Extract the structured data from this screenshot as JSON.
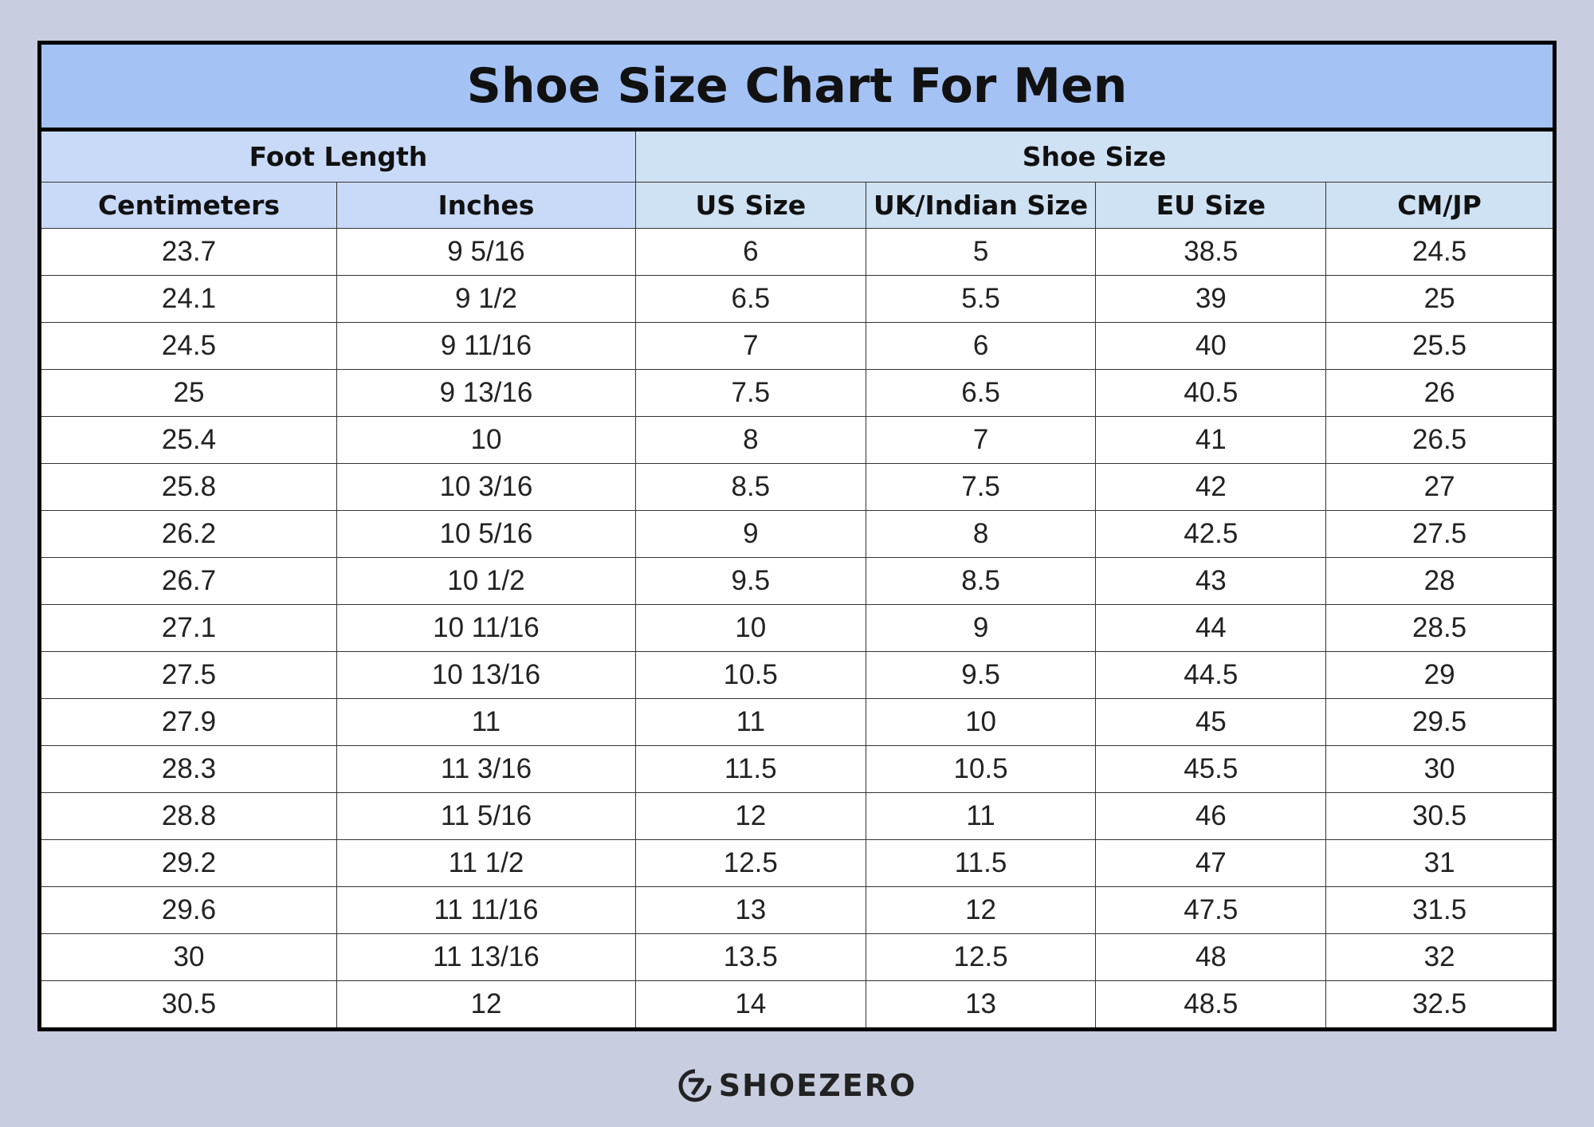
{
  "header": {
    "title": "Shoe Size Chart For Men"
  },
  "table": {
    "groups": [
      "Foot Length",
      "Shoe Size"
    ],
    "columns": [
      "Centimeters",
      "Inches",
      "US Size",
      "UK/Indian Size",
      "EU Size",
      "CM/JP"
    ],
    "rows": [
      [
        "23.7",
        "9 5/16",
        "6",
        "5",
        "38.5",
        "24.5"
      ],
      [
        "24.1",
        "9 1/2",
        "6.5",
        "5.5",
        "39",
        "25"
      ],
      [
        "24.5",
        "9 11/16",
        "7",
        "6",
        "40",
        "25.5"
      ],
      [
        "25",
        "9 13/16",
        "7.5",
        "6.5",
        "40.5",
        "26"
      ],
      [
        "25.4",
        "10",
        "8",
        "7",
        "41",
        "26.5"
      ],
      [
        "25.8",
        "10 3/16",
        "8.5",
        "7.5",
        "42",
        "27"
      ],
      [
        "26.2",
        "10 5/16",
        "9",
        "8",
        "42.5",
        "27.5"
      ],
      [
        "26.7",
        "10 1/2",
        "9.5",
        "8.5",
        "43",
        "28"
      ],
      [
        "27.1",
        "10 11/16",
        "10",
        "9",
        "44",
        "28.5"
      ],
      [
        "27.5",
        "10 13/16",
        "10.5",
        "9.5",
        "44.5",
        "29"
      ],
      [
        "27.9",
        "11",
        "11",
        "10",
        "45",
        "29.5"
      ],
      [
        "28.3",
        "11 3/16",
        "11.5",
        "10.5",
        "45.5",
        "30"
      ],
      [
        "28.8",
        "11 5/16",
        "12",
        "11",
        "46",
        "30.5"
      ],
      [
        "29.2",
        "11 1/2",
        "12.5",
        "11.5",
        "47",
        "31"
      ],
      [
        "29.6",
        "11 11/16",
        "13",
        "12",
        "47.5",
        "31.5"
      ],
      [
        "30",
        "11 13/16",
        "13.5",
        "12.5",
        "48",
        "32"
      ],
      [
        "30.5",
        "12",
        "14",
        "13",
        "48.5",
        "32.5"
      ]
    ]
  },
  "footer": {
    "brand": "SHOEZERO"
  }
}
